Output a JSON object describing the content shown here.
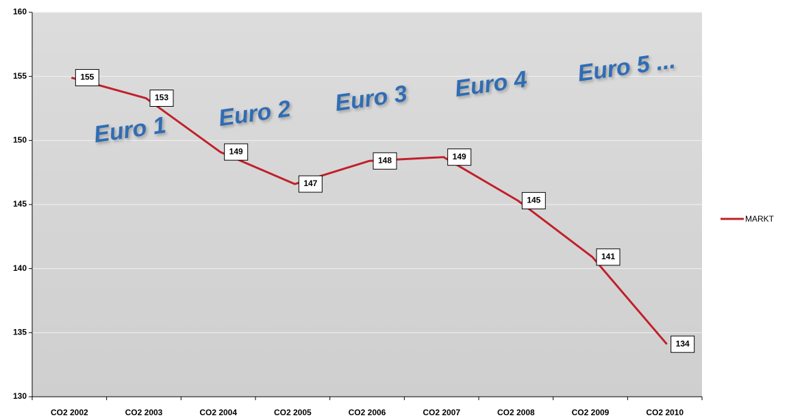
{
  "chart_data": {
    "type": "line",
    "categories": [
      "CO2 2002",
      "CO2 2003",
      "CO2 2004",
      "CO2 2005",
      "CO2 2006",
      "CO2 2007",
      "CO2 2008",
      "CO2 2009",
      "CO2 2010"
    ],
    "series": [
      {
        "name": "MARKT",
        "color": "#c0202a",
        "values": [
          154.9,
          153.3,
          149.1,
          146.6,
          148.4,
          148.7,
          145.3,
          140.9,
          134.1
        ],
        "value_labels": [
          "155",
          "153",
          "149",
          "147",
          "148",
          "149",
          "145",
          "141",
          "134"
        ]
      }
    ],
    "ylim": [
      130,
      160
    ],
    "yticks": [
      130,
      135,
      140,
      145,
      150,
      155,
      160
    ],
    "grid": true,
    "legend": "right",
    "annotations": [
      "Euro 1",
      "Euro 2",
      "Euro 3",
      "Euro 4",
      "Euro 5 ..."
    ]
  }
}
